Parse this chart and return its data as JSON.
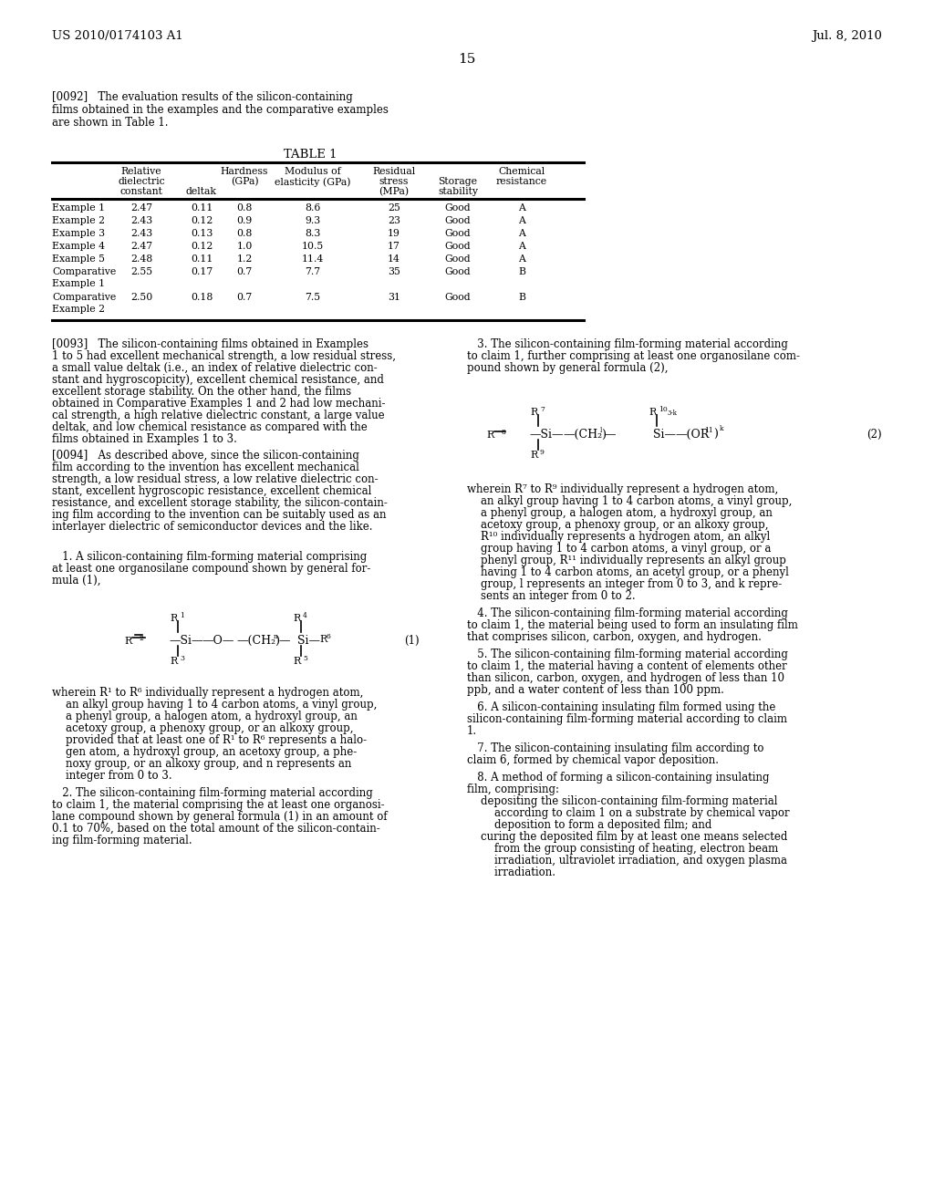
{
  "page_number": "15",
  "header_left": "US 2010/0174103 A1",
  "header_right": "Jul. 8, 2010",
  "bg_color": "#ffffff",
  "text_color": "#000000"
}
